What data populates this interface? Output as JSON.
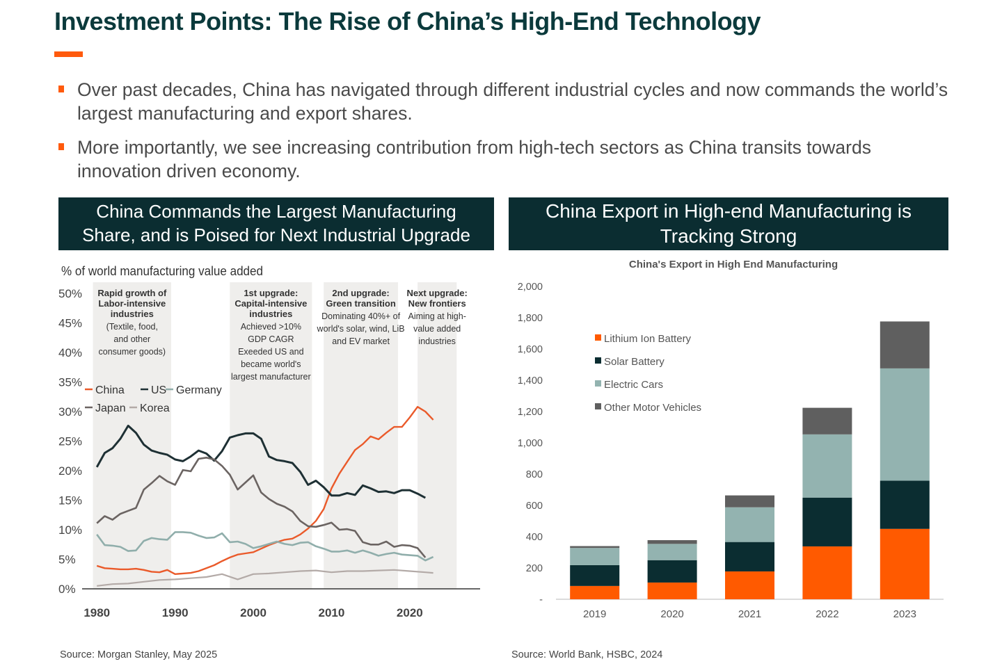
{
  "title": "Investment Points: The Rise of China’s High-End Technology",
  "bullets": [
    "Over past decades, China has navigated through different industrial cycles and now commands the world’s largest manufacturing and export shares.",
    "More importantly, we see increasing contribution from high-tech sectors as China transits towards innovation driven economy."
  ],
  "left_panel": {
    "header_line1": "China Commands the Largest Manufacturing",
    "header_line2": "Share, and is Poised for Next Industrial Upgrade",
    "source": "Source: Morgan Stanley, May 2025"
  },
  "right_panel": {
    "header_line1": "China Export in High-end Manufacturing is",
    "header_line2": "Tracking Strong",
    "source": "Source: World Bank, HSBC, 2024"
  },
  "colors": {
    "accent": "#ff5a0d",
    "navy": "#0b2d31",
    "title": "#0b3a3c",
    "china": "#ea5a2a",
    "us": "#1e3034",
    "germany": "#90aeab",
    "japan": "#6b6462",
    "korea": "#b3aaa7",
    "lithium": "#ff5a00",
    "solar": "#0b2d31",
    "electric": "#93b3b0",
    "other": "#5f5f5f"
  },
  "chart_data": [
    {
      "type": "line",
      "ylabel": "% of world manufacturing value added",
      "xlim": [
        1979,
        2029
      ],
      "ylim": [
        0,
        50
      ],
      "x_ticks": [
        1980,
        1990,
        2000,
        2010,
        2020
      ],
      "y_ticks": [
        "0%",
        "5%",
        "10%",
        "15%",
        "20%",
        "25%",
        "30%",
        "35%",
        "40%",
        "45%",
        "50%"
      ],
      "legend_position": "upper-left",
      "bands": [
        {
          "x_start": 1979.5,
          "x_end": 1989.5,
          "heading": [
            "Rapid growth of",
            "Labor-intensive",
            "industries"
          ],
          "note": [
            "(Textile, food,",
            "and other",
            "consumer goods)"
          ]
        },
        {
          "x_start": 1997,
          "x_end": 2007.5,
          "heading": [
            "1st upgrade:",
            "Capital-intensive",
            "industries"
          ],
          "note": [
            "Achieved >10%",
            "GDP CAGR",
            "Exeeded US and",
            "became world's",
            "largest manufacturer"
          ]
        },
        {
          "x_start": 2009,
          "x_end": 2018.5,
          "heading": [
            "2nd upgrade:",
            "Green transition"
          ],
          "note": [
            "Dominating 40%+ of",
            "world's solar, wind, LiB",
            "and EV market"
          ]
        },
        {
          "x_start": 2021,
          "x_end": 2026,
          "heading": [
            "Next upgrade:",
            "New frontiers"
          ],
          "note": [
            "Aiming at high-",
            "value added",
            "industries"
          ]
        }
      ],
      "series": [
        {
          "name": "China",
          "x": [
            1980,
            1981,
            1982,
            1983,
            1984,
            1985,
            1986,
            1987,
            1988,
            1989,
            1990,
            1991,
            1992,
            1993,
            1994,
            1995,
            1996,
            1997,
            1998,
            1999,
            2000,
            2001,
            2002,
            2003,
            2004,
            2005,
            2006,
            2007,
            2008,
            2009,
            2010,
            2011,
            2012,
            2013,
            2014,
            2015,
            2016,
            2017,
            2018,
            2019,
            2020,
            2021,
            2022,
            2023
          ],
          "y": [
            3.9,
            3.5,
            3.4,
            3.3,
            3.3,
            3.4,
            3.2,
            2.9,
            2.8,
            3.2,
            2.5,
            2.6,
            2.7,
            3.0,
            3.5,
            4.0,
            4.7,
            5.3,
            5.8,
            6.0,
            6.2,
            6.8,
            7.4,
            7.9,
            8.3,
            8.5,
            9.2,
            10.2,
            11.5,
            13.5,
            17.0,
            19.5,
            21.5,
            23.5,
            24.5,
            25.8,
            25.3,
            26.4,
            27.4,
            27.4,
            29.0,
            30.8,
            30.0,
            28.6
          ]
        },
        {
          "name": "US",
          "x": [
            1980,
            1981,
            1982,
            1983,
            1984,
            1985,
            1986,
            1987,
            1988,
            1989,
            1990,
            1991,
            1992,
            1993,
            1994,
            1995,
            1996,
            1997,
            1998,
            1999,
            2000,
            2001,
            2002,
            2003,
            2004,
            2005,
            2006,
            2007,
            2008,
            2009,
            2010,
            2011,
            2012,
            2013,
            2014,
            2015,
            2016,
            2017,
            2018,
            2019,
            2020,
            2021,
            2022
          ],
          "y": [
            20.6,
            23.0,
            23.8,
            25.4,
            27.6,
            26.4,
            24.4,
            23.4,
            23.0,
            22.7,
            21.9,
            21.6,
            22.4,
            23.4,
            22.9,
            21.7,
            23.3,
            25.6,
            26.0,
            26.3,
            26.3,
            25.4,
            22.4,
            21.8,
            21.6,
            21.3,
            19.8,
            17.6,
            18.3,
            17.2,
            15.8,
            15.8,
            16.2,
            15.9,
            17.5,
            17.0,
            16.4,
            16.5,
            16.2,
            16.7,
            16.7,
            16.1,
            15.4
          ]
        },
        {
          "name": "Germany",
          "x": [
            1980,
            1981,
            1982,
            1983,
            1984,
            1985,
            1986,
            1987,
            1988,
            1989,
            1990,
            1991,
            1992,
            1993,
            1994,
            1995,
            1996,
            1997,
            1998,
            1999,
            2000,
            2001,
            2002,
            2003,
            2004,
            2005,
            2006,
            2007,
            2008,
            2009,
            2010,
            2011,
            2012,
            2013,
            2014,
            2015,
            2016,
            2017,
            2018,
            2019,
            2020,
            2021,
            2022,
            2023
          ],
          "y": [
            9.2,
            7.4,
            7.3,
            7.1,
            6.4,
            6.5,
            8.1,
            8.6,
            8.4,
            8.3,
            9.6,
            9.6,
            9.5,
            9.0,
            8.6,
            8.7,
            9.4,
            7.9,
            8.0,
            7.6,
            6.9,
            7.2,
            7.6,
            8.0,
            7.6,
            7.4,
            7.8,
            7.9,
            7.2,
            6.8,
            6.3,
            6.3,
            6.5,
            6.1,
            6.5,
            6.1,
            5.6,
            5.9,
            6.1,
            5.8,
            5.7,
            5.6,
            4.8,
            5.4
          ]
        },
        {
          "name": "Japan",
          "x": [
            1980,
            1981,
            1982,
            1983,
            1984,
            1985,
            1986,
            1987,
            1988,
            1989,
            1990,
            1991,
            1992,
            1993,
            1994,
            1995,
            1996,
            1997,
            1998,
            1999,
            2000,
            2001,
            2002,
            2003,
            2004,
            2005,
            2006,
            2007,
            2008,
            2009,
            2010,
            2011,
            2012,
            2013,
            2014,
            2015,
            2016,
            2017,
            2018,
            2019,
            2020,
            2021,
            2022
          ],
          "y": [
            11.1,
            12.3,
            11.7,
            12.7,
            13.2,
            13.7,
            16.8,
            17.9,
            19.1,
            18.2,
            17.6,
            20.1,
            19.9,
            22.0,
            22.2,
            21.9,
            20.8,
            19.3,
            16.8,
            18.0,
            19.2,
            16.3,
            15.2,
            14.4,
            13.9,
            13.1,
            11.5,
            10.6,
            10.5,
            10.8,
            11.2,
            10.0,
            10.1,
            9.8,
            7.9,
            7.5,
            7.5,
            8.0,
            7.1,
            7.4,
            7.3,
            6.9,
            5.3
          ]
        },
        {
          "name": "Korea",
          "x": [
            1980,
            1982,
            1984,
            1986,
            1988,
            1990,
            1992,
            1994,
            1996,
            1998,
            2000,
            2002,
            2004,
            2006,
            2008,
            2010,
            2012,
            2014,
            2016,
            2018,
            2020,
            2022,
            2023
          ],
          "y": [
            0.5,
            0.8,
            0.9,
            1.2,
            1.5,
            1.6,
            1.8,
            2.0,
            2.5,
            1.6,
            2.5,
            2.6,
            2.8,
            3.0,
            3.1,
            2.8,
            3.0,
            3.0,
            3.1,
            3.2,
            3.0,
            2.8,
            2.7
          ]
        }
      ]
    },
    {
      "type": "bar",
      "title": "China's Export in High End Manufacturing",
      "stacked": true,
      "categories": [
        "2019",
        "2020",
        "2021",
        "2022",
        "2023"
      ],
      "ylim": [
        0,
        2000
      ],
      "y_ticks": [
        "-",
        "200",
        "400",
        "600",
        "800",
        "1,000",
        "1,200",
        "1,400",
        "1,600",
        "1,800",
        "2,000"
      ],
      "legend_position": "upper-left",
      "series": [
        {
          "name": "Lithium Ion Battery",
          "values": [
            85,
            107,
            178,
            338,
            450
          ]
        },
        {
          "name": "Solar Battery",
          "values": [
            133,
            143,
            188,
            312,
            308
          ]
        },
        {
          "name": "Electric Cars",
          "values": [
            110,
            104,
            222,
            404,
            718
          ]
        },
        {
          "name": "Other Motor Vehicles",
          "values": [
            12,
            24,
            76,
            170,
            300
          ]
        }
      ]
    }
  ]
}
